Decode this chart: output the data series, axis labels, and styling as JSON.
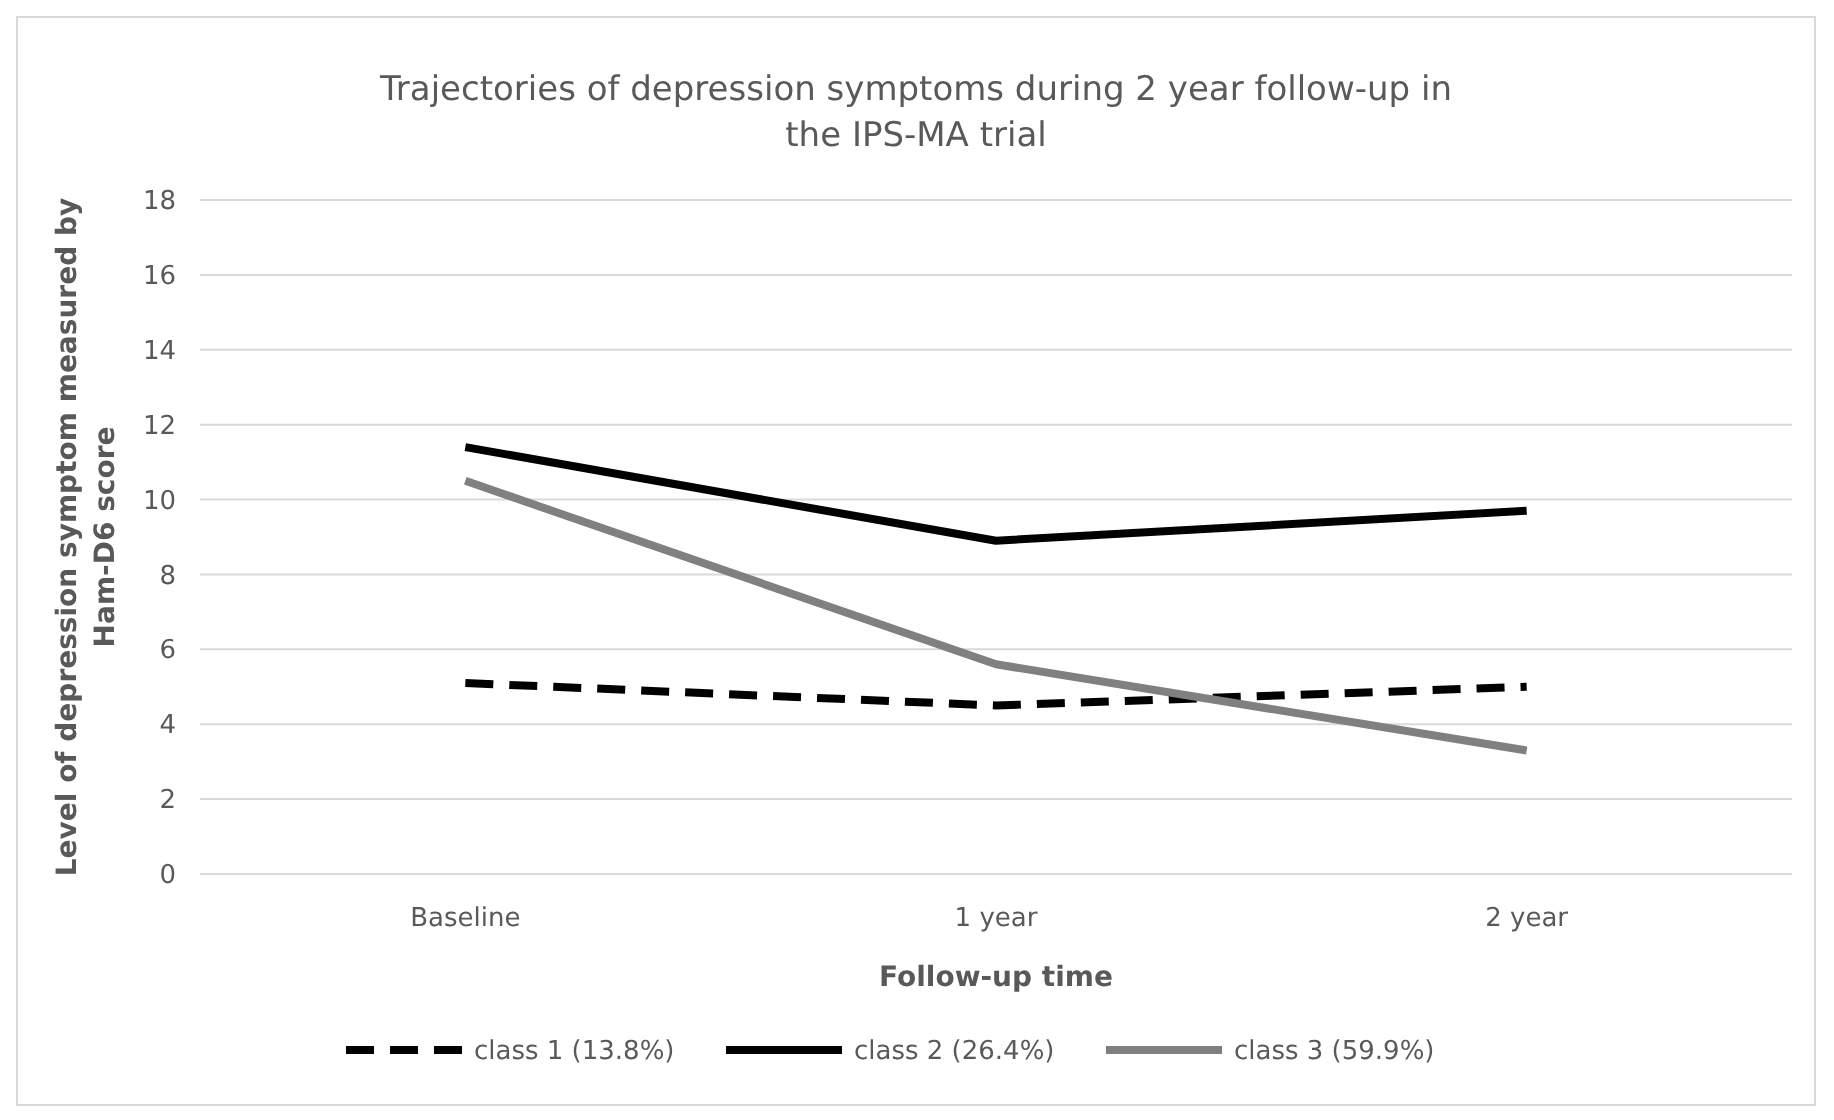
{
  "chart_data": {
    "type": "line",
    "title": "Trajectories of depression symptoms during 2 year follow-up in the IPS-MA trial",
    "xlabel": "Follow-up time",
    "ylabel": "Level of depression symptom measured by Ham-D6 score",
    "categories": [
      "Baseline",
      "1 year",
      "2 year"
    ],
    "series": [
      {
        "name": "class 1 (13.8%)",
        "color": "#000000",
        "line_style": "dashed",
        "values": [
          5.1,
          4.5,
          5.0
        ]
      },
      {
        "name": "class 2 (26.4%)",
        "color": "#000000",
        "line_style": "solid",
        "values": [
          11.4,
          8.9,
          9.7
        ]
      },
      {
        "name": "class 3 (59.9%)",
        "color": "#808080",
        "line_style": "solid",
        "values": [
          10.5,
          5.6,
          3.3
        ]
      }
    ],
    "ylim": [
      0,
      18
    ],
    "yticks": [
      0,
      2,
      4,
      6,
      8,
      10,
      12,
      14,
      16,
      18
    ],
    "grid": "y",
    "legend": "bottom",
    "marker": "none"
  }
}
